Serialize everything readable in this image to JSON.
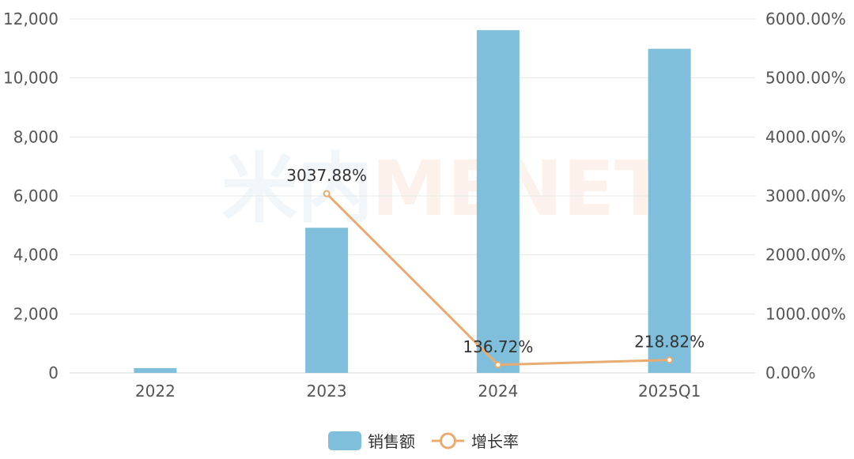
{
  "watermark": {
    "cjk": "米内",
    "latin": "MENET"
  },
  "chart_data": {
    "type": "bar",
    "categories": [
      "2022",
      "2023",
      "2024",
      "2025Q1"
    ],
    "series": [
      {
        "name": "销售额",
        "type": "bar",
        "axis": "left",
        "values": [
          160,
          4920,
          11620,
          10990
        ],
        "color": "#7fbfdb"
      },
      {
        "name": "增长率",
        "type": "line",
        "axis": "right",
        "values": [
          null,
          3037.88,
          136.72,
          218.82
        ],
        "labels": [
          "",
          "3037.88%",
          "136.72%",
          "218.82%"
        ],
        "color": "#e8ac72"
      }
    ],
    "y_left": {
      "min": 0,
      "max": 12000,
      "ticks": [
        "0",
        "2,000",
        "4,000",
        "6,000",
        "8,000",
        "10,000",
        "12,000"
      ]
    },
    "y_right": {
      "min": 0,
      "max": 6000,
      "ticks": [
        "0.00%",
        "1000.00%",
        "2000.00%",
        "3000.00%",
        "4000.00%",
        "5000.00%",
        "6000.00%"
      ]
    },
    "grid": true,
    "legend": {
      "position": "bottom-center",
      "entries": [
        "销售额",
        "增长率"
      ]
    }
  }
}
